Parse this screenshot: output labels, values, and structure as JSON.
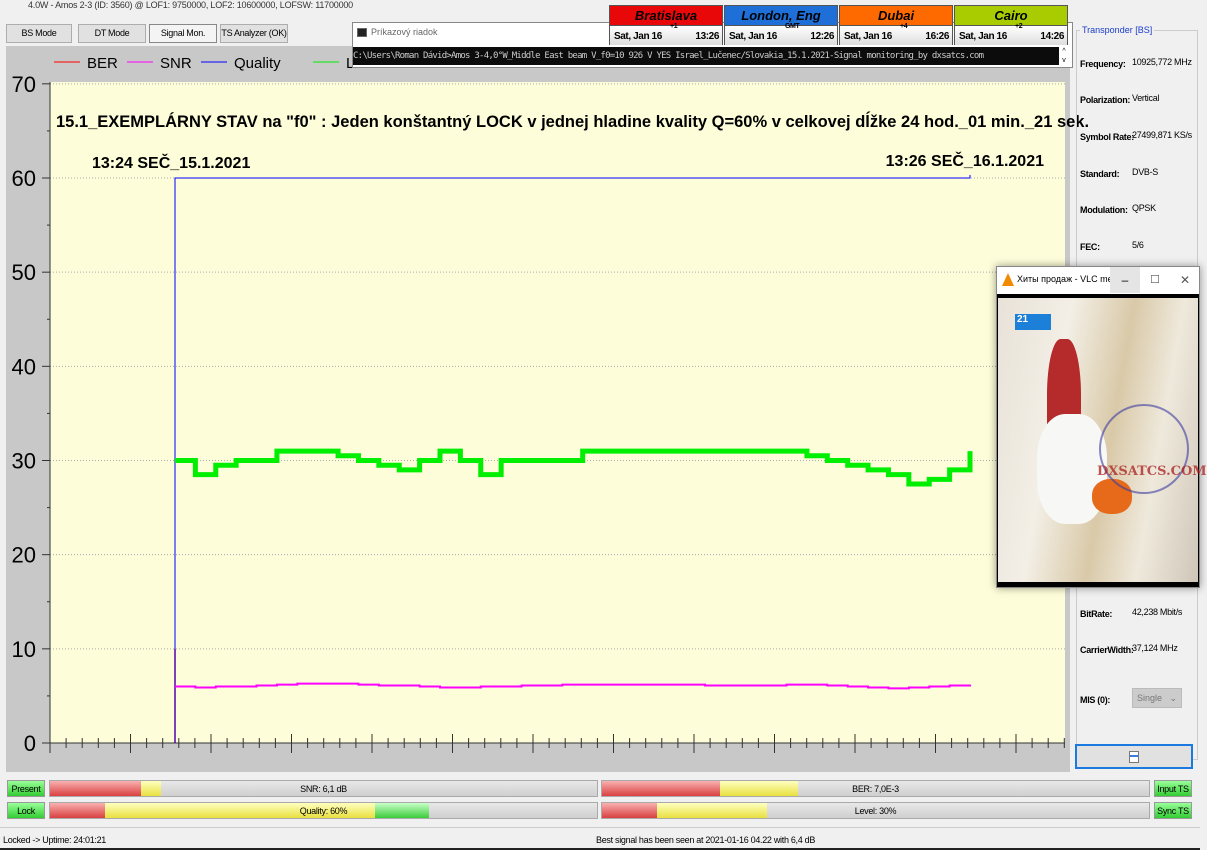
{
  "window_title": "4.0W - Amos 2-3 (ID: 3560) @ LOF1: 9750000, LOF2: 10600000, LOFSW: 11700000",
  "tabs": [
    {
      "label": "BS Mode"
    },
    {
      "label": "DT Mode"
    },
    {
      "label": "Signal Mon.",
      "active": true
    },
    {
      "label": "TS Analyzer (OK)"
    }
  ],
  "cmd": {
    "title": "Príkazový riadok",
    "line": "C:\\Users\\Roman Dávid>Amos 3-4,0°W_Middle East beam V_f0=10 926 V YES Israel_Lučenec/Slovakia_15.1.2021-Signal monitoring_by dxsatcs.com"
  },
  "clocks": [
    {
      "city": "Bratislava",
      "date": "Sat, Jan 16",
      "tz": "+1",
      "time": "13:26",
      "color": "#e8080a"
    },
    {
      "city": "London, Eng",
      "date": "Sat, Jan 16",
      "tz": "GMT",
      "time": "12:26",
      "color": "#1e6fd8"
    },
    {
      "city": "Dubai",
      "date": "Sat, Jan 16",
      "tz": "+4",
      "time": "16:26",
      "color": "#ff6a00"
    },
    {
      "city": "Cairo",
      "date": "Sat, Jan 16",
      "tz": "+2",
      "time": "14:26",
      "color": "#a8cc00"
    }
  ],
  "chart_data": {
    "type": "line",
    "annotation": "15.1_EXEMPLÁRNY STAV na \"f0\" : Jeden konštantný LOCK v jednej hladine kvality Q=60% v celkovej dĺžke 24 hod._01 min._21 sek.",
    "start_label": "13:24 SEČ_15.1.2021",
    "end_label": "13:26 SEČ_16.1.2021",
    "ylim": [
      0,
      70
    ],
    "yticks": [
      "0",
      "10",
      "20",
      "30",
      "40",
      "50",
      "60",
      "70"
    ],
    "grid": true,
    "legend": "top-left",
    "background": "#fdfdd9",
    "series": [
      {
        "name": "BER",
        "color": "#ff0000",
        "values": [
          10,
          0
        ]
      },
      {
        "name": "SNR",
        "color": "#ff00ff",
        "values": [
          6,
          5.9,
          6,
          6,
          6.1,
          6.2,
          6.3,
          6.3,
          6.3,
          6.2,
          6.1,
          6.1,
          6,
          5.9,
          5.9,
          6,
          6,
          6.1,
          6.1,
          6.2,
          6.2,
          6.2,
          6.2,
          6.2,
          6.2,
          6.2,
          6.1,
          6.1,
          6.1,
          6.1,
          6.2,
          6.2,
          6.1,
          6,
          5.9,
          5.8,
          5.9,
          6,
          6.1,
          6.2
        ]
      },
      {
        "name": "Quality",
        "color": "#0000ff",
        "values": [
          60,
          60,
          60,
          60,
          60,
          60,
          60,
          60,
          60,
          60,
          60,
          60,
          60,
          60,
          60,
          60,
          60,
          60,
          60,
          60,
          60,
          60,
          60,
          60,
          60,
          60,
          60,
          60,
          60,
          60,
          60,
          60,
          60,
          60,
          60,
          60,
          60,
          60,
          60,
          60
        ]
      },
      {
        "name": "Level",
        "color": "#00ee00",
        "values": [
          30,
          28.5,
          29.5,
          30,
          30,
          31,
          31,
          31,
          30.5,
          30,
          29.5,
          29,
          30,
          31,
          30,
          28.5,
          30,
          30,
          30,
          30,
          31,
          31,
          31,
          31,
          31,
          31,
          31,
          31,
          31,
          31,
          31,
          30.5,
          30,
          29.5,
          29,
          28.5,
          27.5,
          28,
          29,
          31
        ]
      }
    ]
  },
  "transponder": {
    "title": "Transponder [BS]",
    "fields": [
      {
        "label": "Frequency:",
        "value": "10925,772 MHz"
      },
      {
        "label": "Polarization:",
        "value": "Vertical"
      },
      {
        "label": "Symbol Rate:",
        "value": "27499,871 KS/s"
      },
      {
        "label": "Standard:",
        "value": "DVB-S"
      },
      {
        "label": "Modulation:",
        "value": "QPSK"
      },
      {
        "label": "FEC:",
        "value": "5/6"
      },
      {
        "label": "BitRate:",
        "value": "42,238 Mbit/s"
      },
      {
        "label": "CarrierWidth:",
        "value": "37,124 MHz"
      },
      {
        "label": "MIS (0):",
        "value": "Single"
      }
    ]
  },
  "vlc": {
    "title": "Хиты продаж - VLC me...",
    "watermark": "DXSATCS.COM",
    "channel": "21"
  },
  "meters": {
    "present": "Present",
    "lock": "Lock",
    "input_ts": "Input TS",
    "sync_ts": "Sync TS",
    "snr": {
      "label": "SNR: 6,1 dB",
      "percent": 20
    },
    "ber": {
      "label": "BER: 7,0E-3",
      "percent": 35
    },
    "quality": {
      "label": "Quality: 60%",
      "percent": 60
    },
    "level": {
      "label": "Level: 30%",
      "percent": 30
    }
  },
  "status": {
    "left": "Locked -> Uptime: 24:01:21",
    "center": "Best signal has been seen at 2021-01-16 04.22 with 6,4 dB"
  }
}
